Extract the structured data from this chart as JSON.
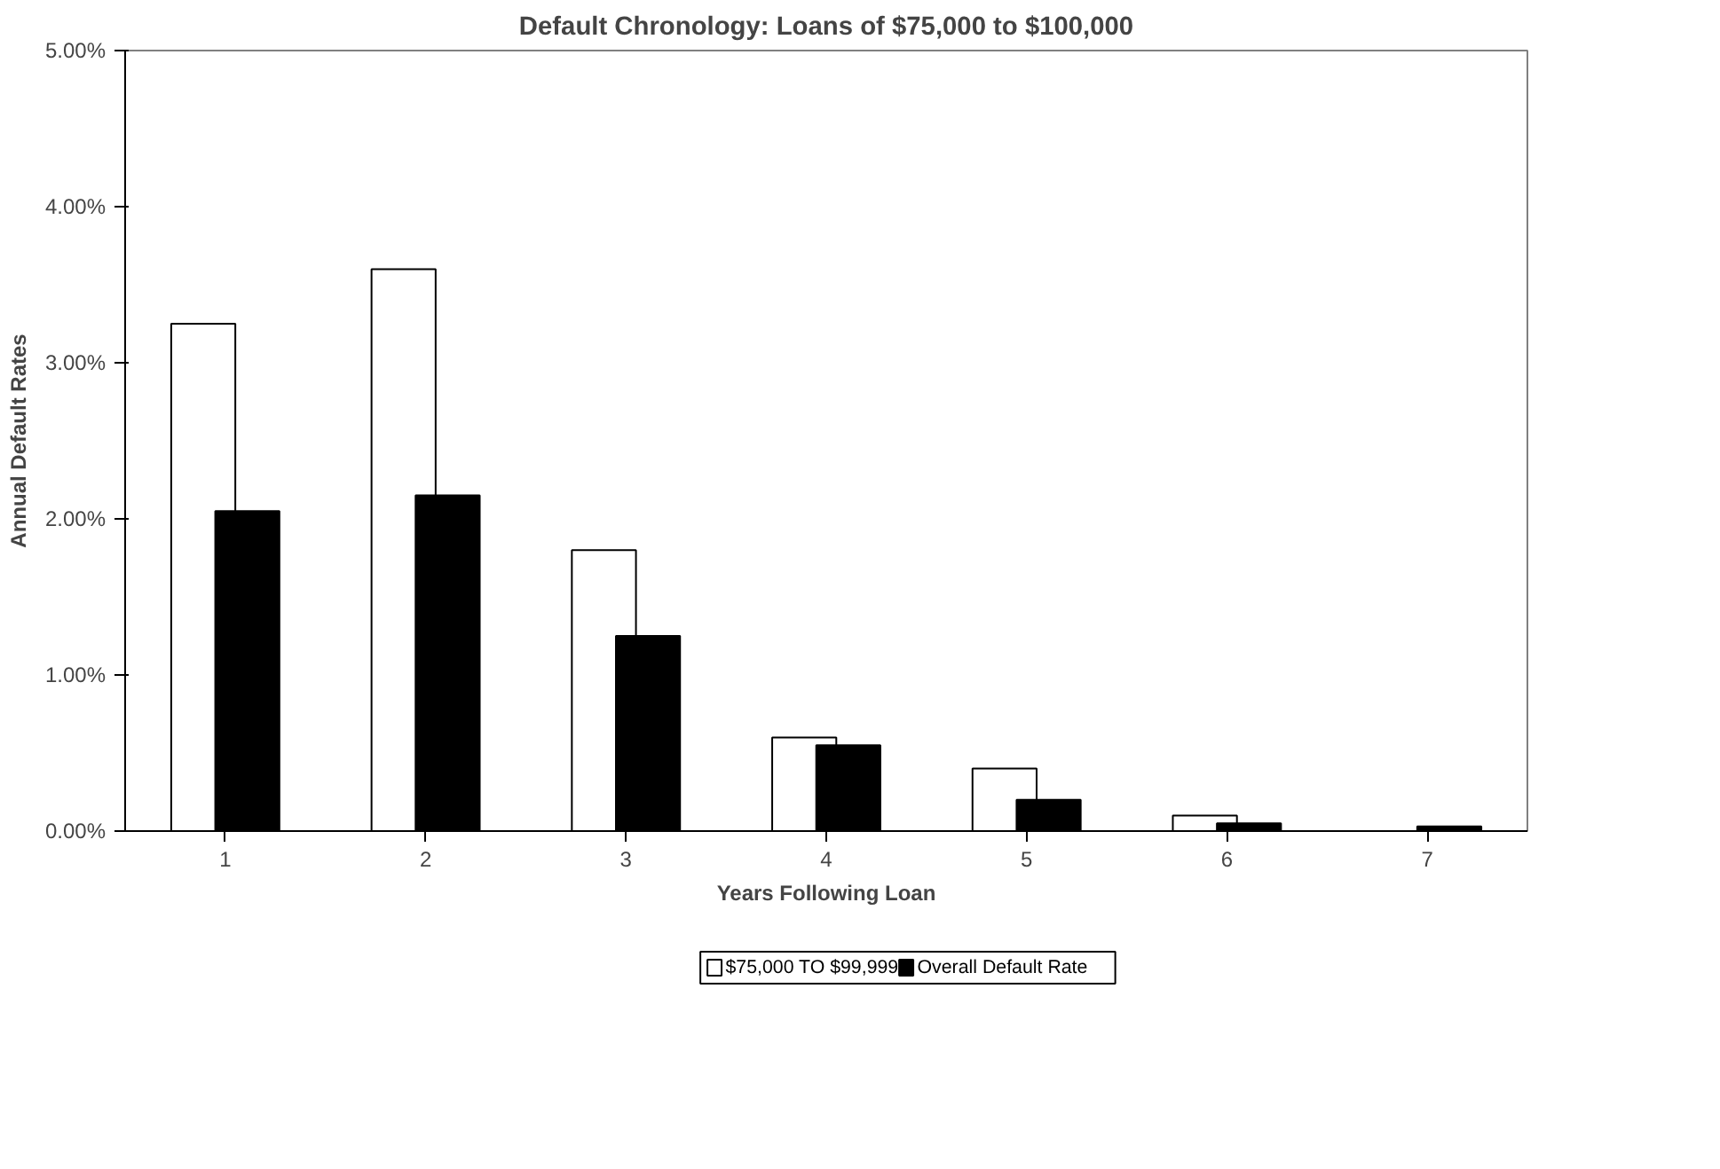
{
  "chart_data": {
    "type": "bar",
    "title": "Default Chronology: Loans of $75,000 to $100,000",
    "xlabel": "Years Following Loan",
    "ylabel": "Annual Default Rates",
    "categories": [
      "1",
      "2",
      "3",
      "4",
      "5",
      "6",
      "7"
    ],
    "series": [
      {
        "name": "$75,000 TO $99,999",
        "color": "#ffffff",
        "values": [
          3.25,
          3.6,
          1.8,
          0.6,
          0.4,
          0.1,
          null
        ]
      },
      {
        "name": "Overall Default Rate",
        "color": "#000000",
        "values": [
          2.05,
          2.15,
          1.25,
          0.55,
          0.2,
          0.05,
          0.03
        ]
      }
    ],
    "ylim": [
      0,
      5
    ],
    "yticks": [
      {
        "value": 0,
        "label": "0.00%"
      },
      {
        "value": 1,
        "label": "1.00%"
      },
      {
        "value": 2,
        "label": "2.00%"
      },
      {
        "value": 3,
        "label": "3.00%"
      },
      {
        "value": 4,
        "label": "4.00%"
      },
      {
        "value": 5,
        "label": "5.00%"
      }
    ],
    "grid": false,
    "legend": "bottom"
  }
}
